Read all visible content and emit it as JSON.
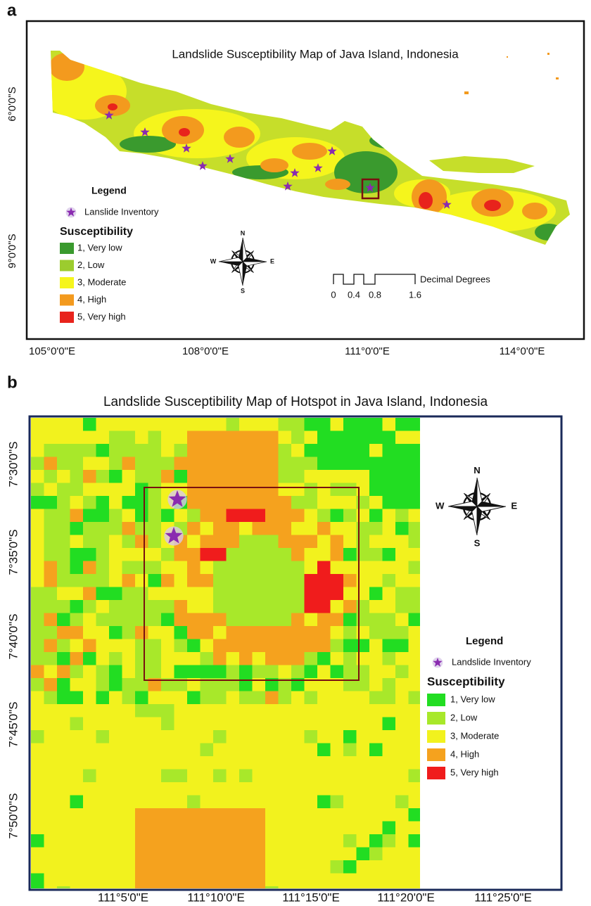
{
  "panel_a": {
    "label": "a",
    "title": "Landslide Susceptibility Map of Java Island, Indonesia",
    "legend": {
      "title": "Legend",
      "inventory": "Lanslide Inventory",
      "susceptibility_title": "Susceptibility",
      "classes": [
        {
          "label": "1, Very low",
          "color": "#3a9a2e"
        },
        {
          "label": "2, Low",
          "color": "#9ccc2e"
        },
        {
          "label": "3, Moderate",
          "color": "#f5f51c"
        },
        {
          "label": "4, High",
          "color": "#f39a1e"
        },
        {
          "label": "5, Very high",
          "color": "#e8231c"
        }
      ]
    },
    "compass": {
      "n": "N",
      "e": "E",
      "s": "S",
      "w": "W"
    },
    "scale_bar": {
      "ticks": [
        "0",
        "0.4",
        "0.8",
        "1.6"
      ],
      "unit": "Decimal Degrees"
    },
    "x_labels": [
      "105°0'0\"E",
      "108°0'0\"E",
      "111°0'0\"E",
      "114°0'0\"E"
    ],
    "y_labels": [
      "6°0'0\"S",
      "9°0'0\"S"
    ]
  },
  "panel_b": {
    "label": "b",
    "title": "Landslide Susceptibility Map of Hotspot in Java Island, Indonesia",
    "legend": {
      "title": "Legend",
      "inventory": "Landslide Inventory",
      "susceptibility_title": "Susceptibility",
      "classes": [
        {
          "label": "1, Very low",
          "color": "#22dd22"
        },
        {
          "label": "2, Low",
          "color": "#a8e82a"
        },
        {
          "label": "3, Moderate",
          "color": "#f2f21e"
        },
        {
          "label": "4, High",
          "color": "#f5a21e"
        },
        {
          "label": "5, Very high",
          "color": "#f01c1c"
        }
      ]
    },
    "compass": {
      "n": "N",
      "e": "E",
      "s": "S",
      "w": "W"
    },
    "x_labels": [
      "111°5'0\"E",
      "111°10'0\"E",
      "111°15'0\"E",
      "111°20'0\"E",
      "111°25'0\"E"
    ],
    "y_labels": [
      "7°30'0\"S",
      "7°35'0\"S",
      "7°40'0\"S",
      "7°45'0\"S",
      "7°50'0\"S"
    ]
  }
}
